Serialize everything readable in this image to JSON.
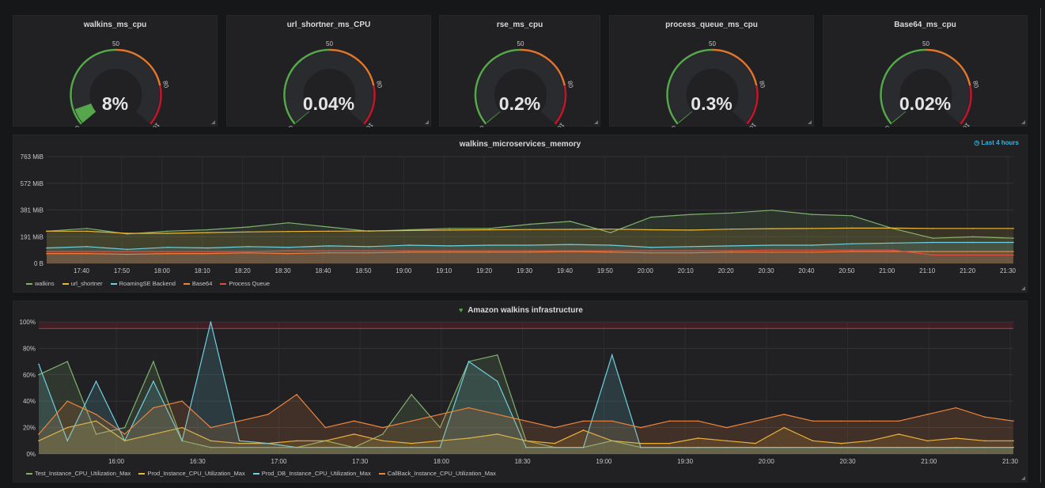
{
  "gauges": [
    {
      "title": "walkins_ms_cpu",
      "value_text": "8%",
      "value": 8
    },
    {
      "title": "url_shortner_ms_CPU",
      "value_text": "0.04%",
      "value": 0.04
    },
    {
      "title": "rse_ms_cpu",
      "value_text": "0.2%",
      "value": 0.2
    },
    {
      "title": "process_queue_ms_cpu",
      "value_text": "0.3%",
      "value": 0.3
    },
    {
      "title": "Base64_ms_cpu",
      "value_text": "0.02%",
      "value": 0.02
    }
  ],
  "gauge_scale": {
    "min_label": "0",
    "mid_label": "50",
    "warn_label": "80",
    "max_label": "100",
    "min": 0,
    "max": 100,
    "thresholds": [
      50,
      80
    ]
  },
  "colors": {
    "green": "#56a64b",
    "orange": "#e0752d",
    "red": "#c4162a",
    "walkins": "#7eb26d",
    "url_shortner": "#eab839",
    "roamingse": "#6ed0e0",
    "base64": "#ef843c",
    "process_queue": "#e24d42",
    "test_instance": "#7eb26d",
    "prod_instance": "#eab839",
    "prod_db": "#6ed0e0",
    "callback": "#ef843c"
  },
  "memory_panel": {
    "title": "walkins_microservices_memory",
    "time_range": "Last 4 hours",
    "y_ticks": [
      "763 MiB",
      "572 MiB",
      "381 MiB",
      "191 MiB",
      "0 B"
    ],
    "x_ticks": [
      "17:40",
      "17:50",
      "18:00",
      "18:10",
      "18:20",
      "18:30",
      "18:40",
      "18:50",
      "19:00",
      "19:10",
      "19:20",
      "19:30",
      "19:40",
      "19:50",
      "20:00",
      "20:10",
      "20:20",
      "20:30",
      "20:40",
      "20:50",
      "21:00",
      "21:10",
      "21:20",
      "21:30"
    ],
    "legend": [
      {
        "name": "walkins",
        "color_key": "walkins"
      },
      {
        "name": "url_shortner",
        "color_key": "url_shortner"
      },
      {
        "name": "RoamingSE Backend",
        "color_key": "roamingse"
      },
      {
        "name": "Base64",
        "color_key": "base64"
      },
      {
        "name": "Process Queue",
        "color_key": "process_queue"
      }
    ]
  },
  "infra_panel": {
    "title": "Amazon walkins infrastructure",
    "y_ticks": [
      "100%",
      "80%",
      "60%",
      "40%",
      "20%",
      "0%"
    ],
    "x_ticks": [
      "16:00",
      "16:30",
      "17:00",
      "17:30",
      "18:00",
      "18:30",
      "19:00",
      "19:30",
      "20:00",
      "20:30",
      "21:00",
      "21:30"
    ],
    "legend": [
      {
        "name": "Test_Instance_CPU_Utilization_Max",
        "color_key": "test_instance"
      },
      {
        "name": "Prod_Instance_CPU_Utilization_Max",
        "color_key": "prod_instance"
      },
      {
        "name": "Prod_DB_Instance_CPU_Utilization_Max",
        "color_key": "prod_db"
      },
      {
        "name": "CallBack_Instance_CPU_Utilization_Max",
        "color_key": "callback"
      }
    ]
  },
  "chart_data": [
    {
      "type": "line",
      "title": "walkins_microservices_memory",
      "ylabel": "",
      "ylim": [
        0,
        763
      ],
      "y_unit": "MiB",
      "x": [
        "17:35",
        "17:45",
        "17:55",
        "18:05",
        "18:15",
        "18:25",
        "18:35",
        "18:45",
        "18:55",
        "19:05",
        "19:15",
        "19:25",
        "19:35",
        "19:45",
        "19:55",
        "20:05",
        "20:15",
        "20:25",
        "20:35",
        "20:45",
        "20:55",
        "21:05",
        "21:15",
        "21:25",
        "21:30"
      ],
      "series": [
        {
          "name": "walkins",
          "values": [
            230,
            250,
            210,
            230,
            240,
            260,
            290,
            260,
            230,
            240,
            250,
            250,
            280,
            300,
            220,
            330,
            350,
            360,
            380,
            350,
            340,
            250,
            180,
            190,
            180
          ]
        },
        {
          "name": "url_shortner",
          "values": [
            230,
            230,
            215,
            215,
            220,
            225,
            228,
            230,
            232,
            235,
            238,
            240,
            242,
            243,
            245,
            240,
            238,
            245,
            248,
            250,
            252,
            252,
            250,
            250,
            250
          ]
        },
        {
          "name": "RoamingSE Backend",
          "values": [
            110,
            120,
            100,
            115,
            110,
            120,
            115,
            125,
            120,
            130,
            125,
            130,
            130,
            135,
            130,
            115,
            120,
            125,
            130,
            130,
            140,
            145,
            150,
            150,
            150
          ]
        },
        {
          "name": "Base64",
          "values": [
            70,
            70,
            65,
            70,
            70,
            75,
            70,
            75,
            75,
            80,
            80,
            80,
            80,
            85,
            80,
            75,
            75,
            80,
            80,
            80,
            85,
            85,
            85,
            85,
            85
          ]
        },
        {
          "name": "Process Queue",
          "values": [
            85,
            85,
            85,
            85,
            85,
            85,
            90,
            90,
            90,
            90,
            90,
            90,
            90,
            90,
            90,
            90,
            90,
            90,
            95,
            95,
            95,
            95,
            60,
            60,
            60
          ]
        }
      ]
    },
    {
      "type": "area",
      "title": "Amazon walkins infrastructure",
      "ylabel": "",
      "ylim": [
        0,
        100
      ],
      "y_unit": "%",
      "x": [
        "15:45",
        "15:55",
        "16:05",
        "16:15",
        "16:25",
        "16:35",
        "16:45",
        "16:55",
        "17:05",
        "17:15",
        "17:25",
        "17:35",
        "17:45",
        "17:55",
        "18:05",
        "18:15",
        "18:25",
        "18:35",
        "18:45",
        "18:55",
        "19:05",
        "19:15",
        "19:25",
        "19:35",
        "19:45",
        "19:55",
        "20:05",
        "20:15",
        "20:25",
        "20:35",
        "20:45",
        "20:55",
        "21:05",
        "21:15",
        "21:25"
      ],
      "series": [
        {
          "name": "Test_Instance_CPU_Utilization_Max",
          "values": [
            60,
            70,
            15,
            20,
            70,
            10,
            5,
            5,
            5,
            5,
            10,
            5,
            15,
            45,
            20,
            70,
            75,
            10,
            5,
            5,
            10,
            5,
            5,
            5,
            5,
            5,
            5,
            5,
            5,
            5,
            5,
            5,
            5,
            5,
            5
          ]
        },
        {
          "name": "Prod_Instance_CPU_Utilization_Max",
          "values": [
            10,
            20,
            25,
            10,
            15,
            20,
            10,
            8,
            8,
            10,
            10,
            15,
            10,
            8,
            10,
            12,
            15,
            10,
            8,
            18,
            10,
            8,
            8,
            12,
            10,
            8,
            20,
            10,
            8,
            10,
            15,
            10,
            12,
            10,
            10
          ]
        },
        {
          "name": "Prod_DB_Instance_CPU_Utilization_Max",
          "values": [
            68,
            10,
            55,
            10,
            55,
            10,
            100,
            10,
            8,
            5,
            5,
            5,
            5,
            5,
            5,
            70,
            55,
            5,
            5,
            5,
            75,
            5,
            5,
            5,
            5,
            5,
            5,
            5,
            5,
            5,
            5,
            5,
            5,
            5,
            5
          ]
        },
        {
          "name": "CallBack_Instance_CPU_Utilization_Max",
          "values": [
            15,
            40,
            30,
            15,
            35,
            40,
            20,
            25,
            30,
            45,
            20,
            25,
            20,
            25,
            30,
            35,
            30,
            25,
            20,
            25,
            25,
            20,
            25,
            25,
            20,
            25,
            30,
            25,
            25,
            25,
            25,
            30,
            35,
            28,
            25
          ]
        }
      ]
    }
  ]
}
